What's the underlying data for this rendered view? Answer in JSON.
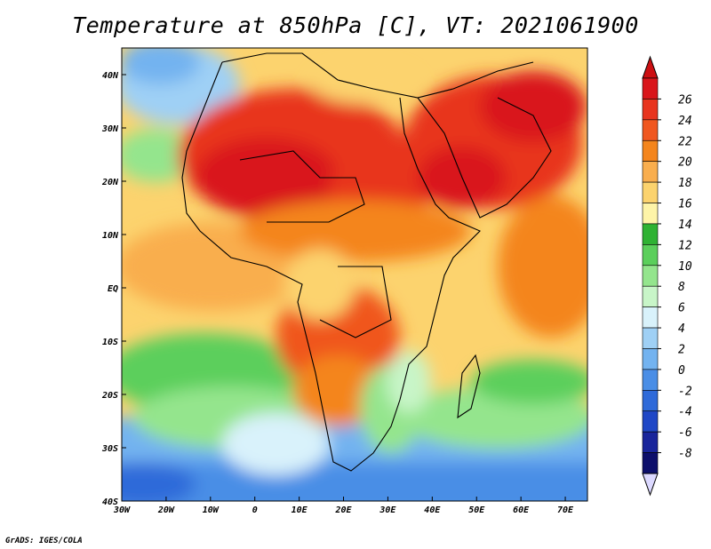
{
  "title": "Temperature at 850hPa [C], VT: 2021061900",
  "credit": "GrADS: IGES/COLA",
  "map": {
    "lat_labels": [
      "40N",
      "30N",
      "20N",
      "10N",
      "EQ",
      "10S",
      "20S",
      "30S",
      "40S"
    ],
    "lon_labels": [
      "30W",
      "20W",
      "10W",
      "0",
      "10E",
      "20E",
      "30E",
      "40E",
      "50E",
      "60E",
      "70E"
    ],
    "lon_range": [
      -30,
      75
    ],
    "lat_range": [
      -40,
      45
    ]
  },
  "colorbar": {
    "levels": [
      "26",
      "24",
      "22",
      "20",
      "18",
      "16",
      "14",
      "12",
      "10",
      "8",
      "6",
      "4",
      "2",
      "0",
      "-2",
      "-4",
      "-6",
      "-8"
    ],
    "colors": [
      "#d9161b",
      "#e8341e",
      "#f0571f",
      "#f4851c",
      "#f9ae4e",
      "#fcd36e",
      "#fef4a8",
      "#2fb233",
      "#5bcf5b",
      "#94e58d",
      "#c8f5c8",
      "#d9f2fb",
      "#9fd0f5",
      "#73b3f0",
      "#4a8ee6",
      "#2f6ad9",
      "#1f47c6",
      "#19259b",
      "#0d0f6b"
    ],
    "top_arrow_color": "#cc0f12",
    "bottom_arrow_color": "#dcd9ff"
  }
}
